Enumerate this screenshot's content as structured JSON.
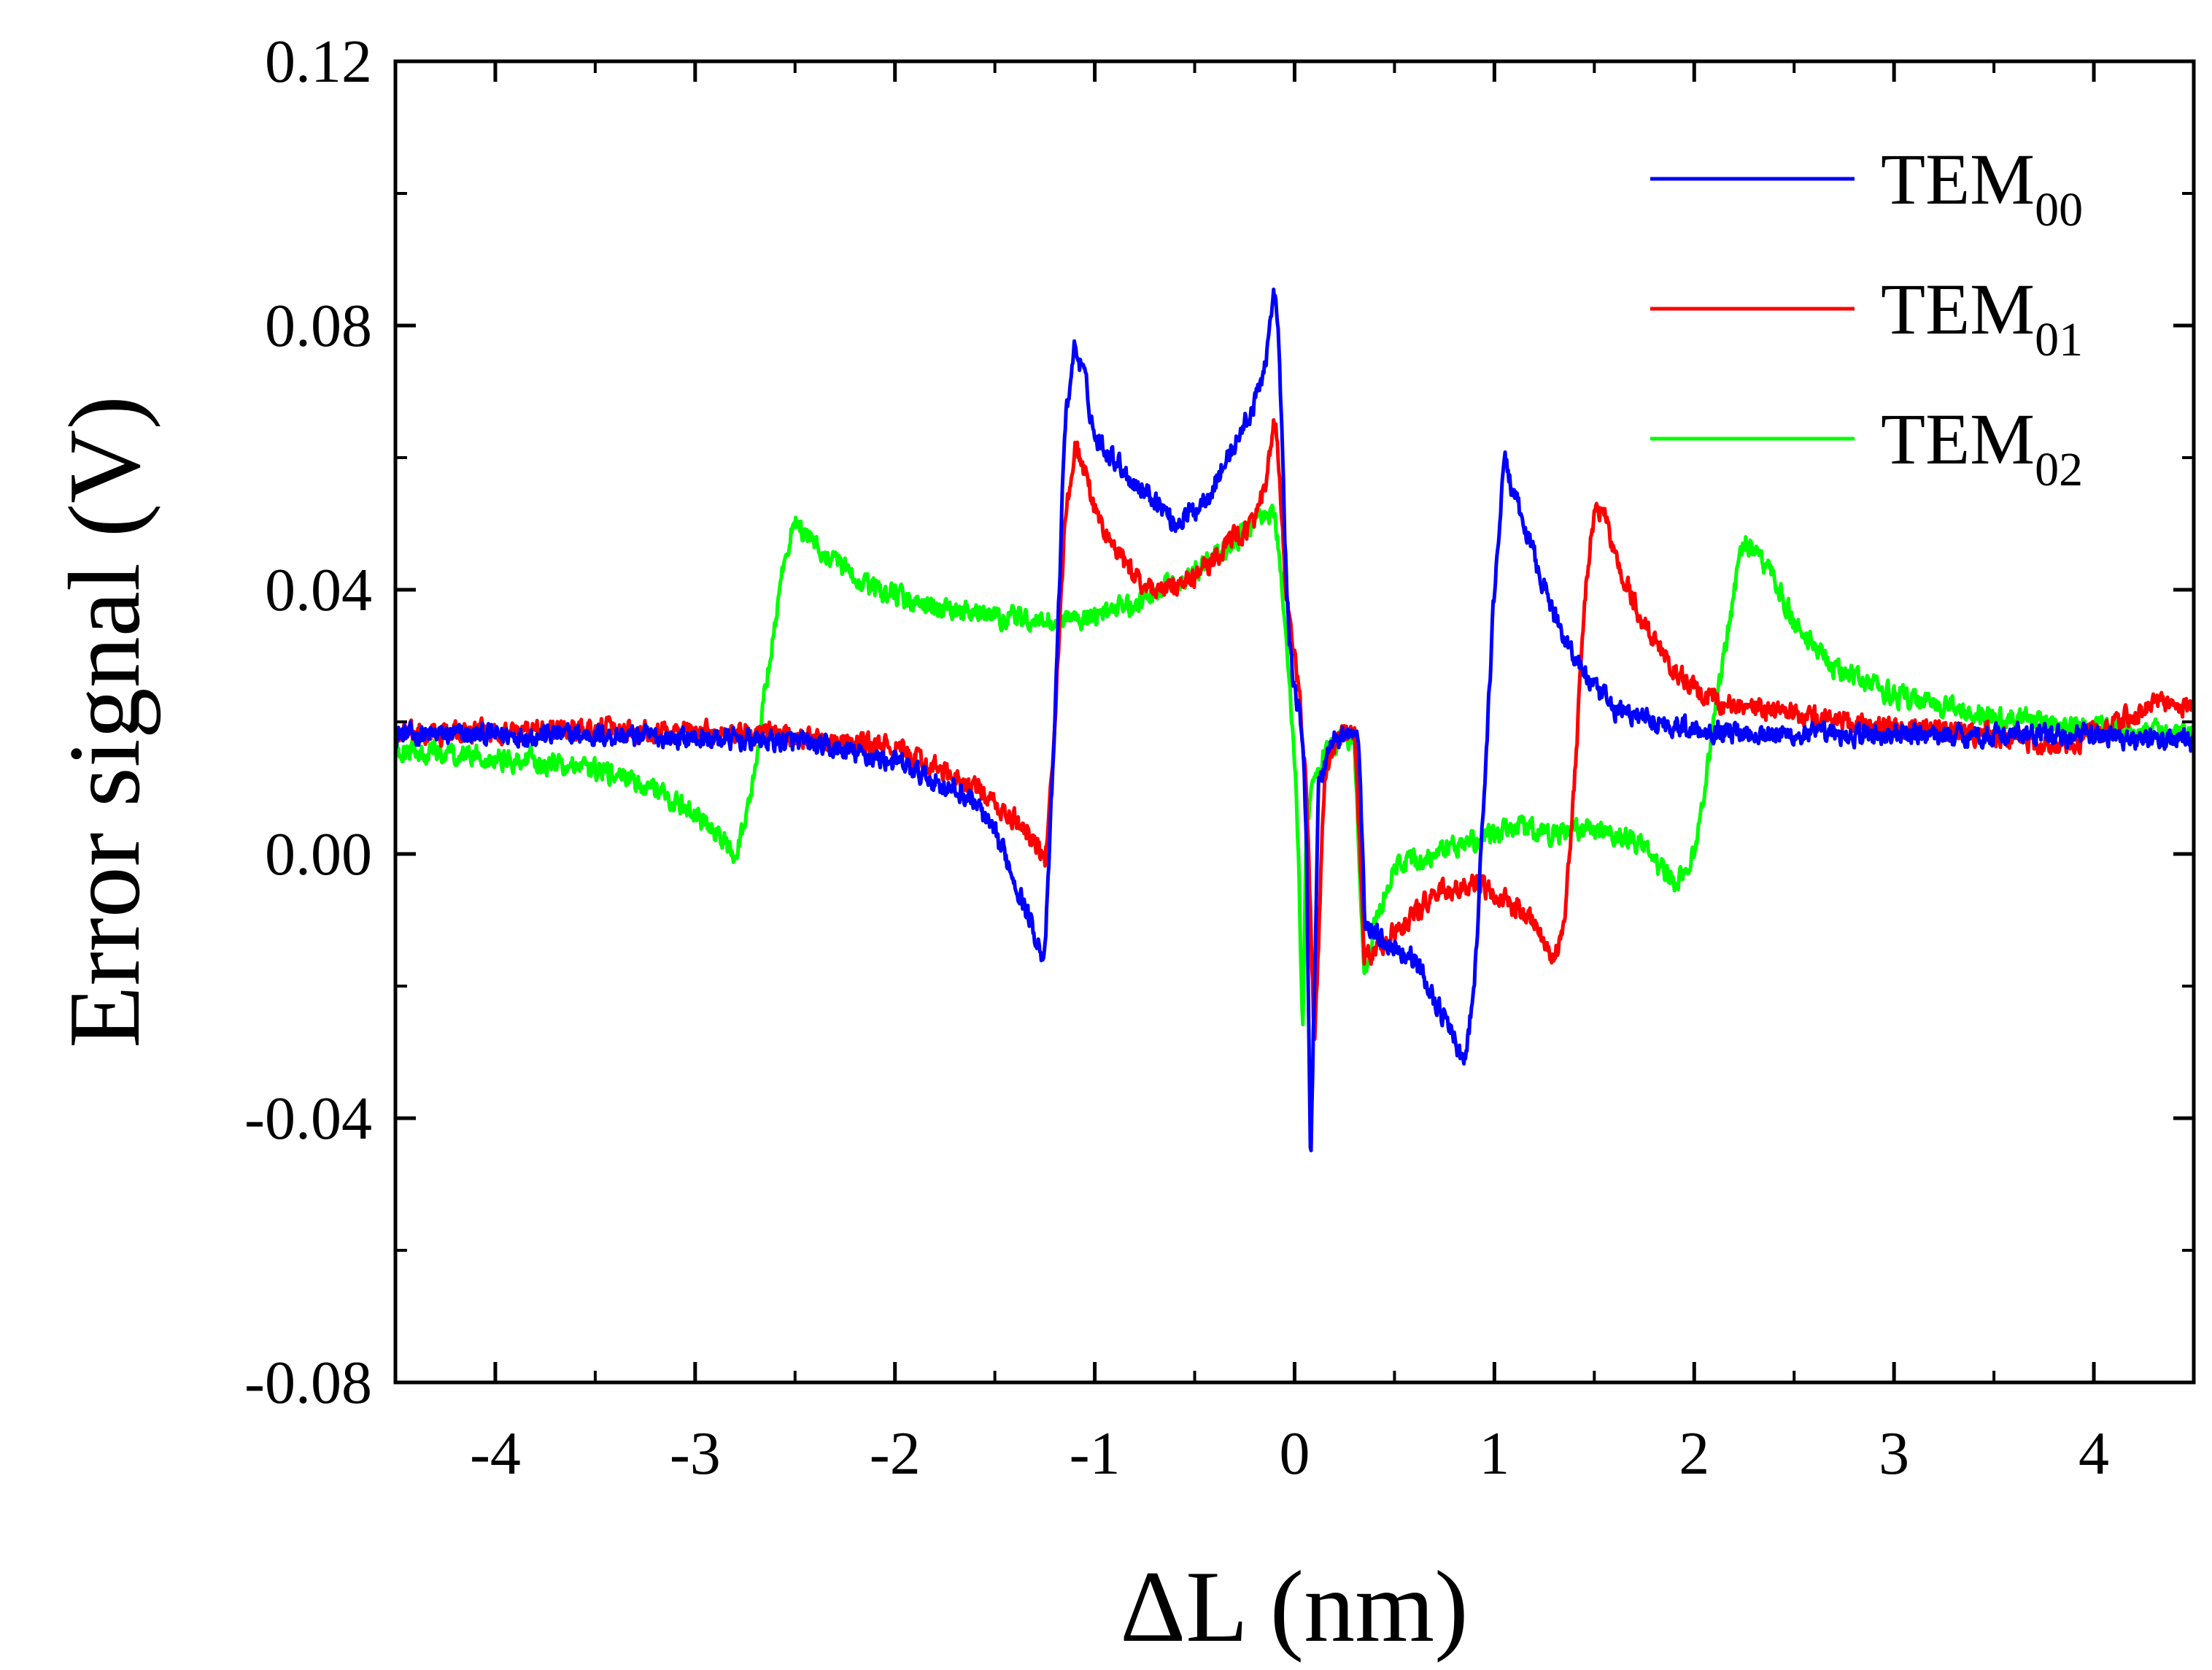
{
  "chart_data": {
    "type": "line",
    "title": "",
    "xlabel": "ΔL (nm)",
    "ylabel": "Error signal (V)",
    "xlim": [
      -4.5,
      4.5
    ],
    "ylim": [
      -0.08,
      0.12
    ],
    "x_ticks": [
      -4,
      -3,
      -2,
      -1,
      0,
      1,
      2,
      3,
      4
    ],
    "x_tick_labels": [
      "-4",
      "-3",
      "-2",
      "-1",
      "0",
      "1",
      "2",
      "3",
      "4"
    ],
    "y_ticks": [
      -0.08,
      -0.04,
      0.0,
      0.04,
      0.08,
      0.12
    ],
    "y_tick_labels": [
      "-0.08",
      "-0.04",
      "0.00",
      "0.04",
      "0.08",
      "0.12"
    ],
    "grid": false,
    "legend_position": "top-right",
    "series": [
      {
        "name": "TEM00",
        "label_main": "TEM",
        "label_sub": "00",
        "color": "#0000ff",
        "noise": 0.0025,
        "x": [
          -4.5,
          -3.5,
          -2.5,
          -2.0,
          -1.6,
          -1.45,
          -1.35,
          -1.3,
          -1.25,
          -1.2,
          -1.15,
          -1.1,
          -1.05,
          -1.0,
          -0.9,
          -0.8,
          -0.7,
          -0.6,
          -0.5,
          -0.4,
          -0.3,
          -0.2,
          -0.15,
          -0.1,
          -0.08,
          -0.06,
          -0.04,
          -0.02,
          0.0,
          0.02,
          0.04,
          0.06,
          0.08,
          0.12,
          0.18,
          0.25,
          0.32,
          0.35,
          0.4,
          0.5,
          0.6,
          0.7,
          0.8,
          0.85,
          0.9,
          0.95,
          1.0,
          1.05,
          1.1,
          1.2,
          1.3,
          1.4,
          1.5,
          1.6,
          1.8,
          2.0,
          2.5,
          3.0,
          3.5,
          4.0,
          4.5
        ],
        "y": [
          0.018,
          0.018,
          0.017,
          0.014,
          0.008,
          0.0,
          -0.008,
          -0.012,
          -0.016,
          0.02,
          0.065,
          0.077,
          0.072,
          0.063,
          0.06,
          0.056,
          0.054,
          0.05,
          0.052,
          0.056,
          0.062,
          0.068,
          0.074,
          0.085,
          0.078,
          0.06,
          0.04,
          0.03,
          0.025,
          0.022,
          0.018,
          0.0,
          -0.047,
          0.01,
          0.017,
          0.018,
          0.018,
          -0.01,
          -0.012,
          -0.014,
          -0.016,
          -0.022,
          -0.028,
          -0.032,
          -0.02,
          0.01,
          0.04,
          0.06,
          0.054,
          0.045,
          0.036,
          0.03,
          0.025,
          0.022,
          0.02,
          0.019,
          0.018,
          0.018,
          0.018,
          0.018,
          0.017
        ]
      },
      {
        "name": "TEM01",
        "label_main": "TEM",
        "label_sub": "01",
        "color": "#ff0000",
        "noise": 0.0025,
        "x": [
          -4.5,
          -3.5,
          -2.5,
          -2.0,
          -1.6,
          -1.45,
          -1.35,
          -1.3,
          -1.25,
          -1.2,
          -1.15,
          -1.1,
          -1.05,
          -1.0,
          -0.9,
          -0.8,
          -0.7,
          -0.6,
          -0.5,
          -0.4,
          -0.3,
          -0.2,
          -0.15,
          -0.1,
          -0.08,
          -0.05,
          -0.02,
          0.0,
          0.03,
          0.06,
          0.1,
          0.15,
          0.2,
          0.25,
          0.3,
          0.35,
          0.5,
          0.7,
          0.9,
          1.0,
          1.1,
          1.2,
          1.3,
          1.35,
          1.4,
          1.45,
          1.5,
          1.55,
          1.6,
          1.7,
          1.8,
          1.9,
          2.0,
          2.1,
          2.5,
          3.0,
          3.5,
          3.8,
          4.0,
          4.3,
          4.5
        ],
        "y": [
          0.018,
          0.019,
          0.018,
          0.016,
          0.01,
          0.006,
          0.004,
          0.002,
          -0.002,
          0.02,
          0.05,
          0.062,
          0.058,
          0.052,
          0.046,
          0.042,
          0.04,
          0.04,
          0.042,
          0.045,
          0.048,
          0.05,
          0.055,
          0.065,
          0.06,
          0.042,
          0.033,
          0.03,
          0.022,
          0.01,
          -0.03,
          0.012,
          0.017,
          0.018,
          0.018,
          -0.016,
          -0.012,
          -0.006,
          -0.005,
          -0.006,
          -0.008,
          -0.01,
          -0.016,
          -0.01,
          0.01,
          0.038,
          0.052,
          0.052,
          0.045,
          0.038,
          0.032,
          0.028,
          0.025,
          0.023,
          0.021,
          0.019,
          0.018,
          0.016,
          0.018,
          0.023,
          0.022
        ]
      },
      {
        "name": "TEM02",
        "label_main": "TEM",
        "label_sub": "02",
        "color": "#00ff00",
        "noise": 0.0025,
        "x": [
          -4.5,
          -3.8,
          -3.4,
          -3.2,
          -3.0,
          -2.9,
          -2.8,
          -2.75,
          -2.7,
          -2.65,
          -2.6,
          -2.55,
          -2.5,
          -2.45,
          -2.3,
          -2.1,
          -1.8,
          -1.5,
          -1.2,
          -1.0,
          -0.8,
          -0.6,
          -0.4,
          -0.2,
          -0.1,
          -0.05,
          0.0,
          0.02,
          0.04,
          0.06,
          0.1,
          0.15,
          0.2,
          0.25,
          0.3,
          0.35,
          0.4,
          0.5,
          0.7,
          0.9,
          1.1,
          1.3,
          1.5,
          1.7,
          1.9,
          2.0,
          2.05,
          2.1,
          2.15,
          2.2,
          2.25,
          2.3,
          2.4,
          2.5,
          2.7,
          3.0,
          3.5,
          4.0,
          4.5
        ],
        "y": [
          0.016,
          0.014,
          0.012,
          0.01,
          0.006,
          0.003,
          0.0,
          0.005,
          0.012,
          0.025,
          0.035,
          0.045,
          0.051,
          0.048,
          0.044,
          0.04,
          0.037,
          0.036,
          0.035,
          0.036,
          0.038,
          0.041,
          0.045,
          0.05,
          0.052,
          0.035,
          0.015,
          0.0,
          -0.028,
          0.005,
          0.012,
          0.015,
          0.017,
          0.018,
          0.017,
          -0.02,
          -0.01,
          -0.002,
          0.0,
          0.002,
          0.004,
          0.003,
          0.004,
          0.002,
          -0.004,
          0.0,
          0.01,
          0.02,
          0.03,
          0.04,
          0.048,
          0.046,
          0.042,
          0.035,
          0.028,
          0.024,
          0.021,
          0.019,
          0.018
        ]
      }
    ]
  }
}
